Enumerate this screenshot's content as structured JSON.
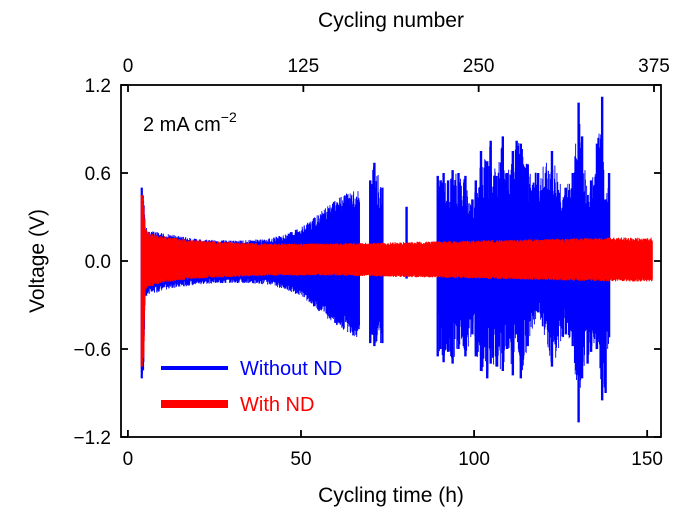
{
  "chart_data": {
    "type": "line",
    "xlabel": "Cycling time (h)",
    "ylabel": "Voltage (V)",
    "x2label": "Cycling number",
    "xlim": [
      -2,
      154
    ],
    "ylim": [
      -1.2,
      1.2
    ],
    "xticks": [
      0,
      50,
      100,
      150
    ],
    "yticks": [
      -1.2,
      -0.6,
      0.0,
      0.6,
      1.2
    ],
    "ytick_labels": [
      "−1.2",
      "−0.6",
      "0.0",
      "0.6",
      "1.2"
    ],
    "x2ticks": [
      0,
      125,
      250,
      375
    ],
    "x2lim": [
      -5,
      380
    ],
    "annotation": {
      "base": "2 mA cm",
      "superscript": "−2"
    },
    "legend": {
      "position": "bottom-left"
    },
    "series": [
      {
        "name": "Without ND",
        "color": "#0000ff",
        "envelope_x": [
          4,
          4.6,
          5,
          6,
          8,
          10,
          15,
          20,
          30,
          40,
          45,
          50,
          53,
          55,
          58,
          60,
          62,
          64,
          66,
          67
        ],
        "envelope_max": [
          0.5,
          0.45,
          0.24,
          0.21,
          0.2,
          0.19,
          0.17,
          0.15,
          0.14,
          0.15,
          0.18,
          0.23,
          0.28,
          0.32,
          0.38,
          0.42,
          0.45,
          0.47,
          0.48,
          0.49
        ],
        "envelope_min": [
          -0.8,
          -0.78,
          -0.25,
          -0.23,
          -0.22,
          -0.2,
          -0.18,
          -0.16,
          -0.15,
          -0.16,
          -0.19,
          -0.24,
          -0.3,
          -0.34,
          -0.4,
          -0.44,
          -0.47,
          -0.5,
          -0.52,
          -0.53
        ],
        "spikes": [
          {
            "x": 70,
            "max": 0.55,
            "min": -0.56
          },
          {
            "x": 71.2,
            "max": 0.67,
            "min": -0.58
          },
          {
            "x": 73.5,
            "max": 0.5,
            "min": -0.56
          },
          {
            "x": 80.5,
            "max": 0.37,
            "min": -0.12
          },
          {
            "x": 89.5,
            "max": 0.58,
            "min": -0.65
          },
          {
            "x": 90.3,
            "max": 0.55,
            "min": -0.6
          },
          {
            "x": 91.2,
            "max": 0.6,
            "min": -0.69
          },
          {
            "x": 92.5,
            "max": 0.55,
            "min": -0.62
          },
          {
            "x": 93.8,
            "max": 0.62,
            "min": -0.7
          },
          {
            "x": 95.5,
            "max": 0.6,
            "min": -0.6
          },
          {
            "x": 97.5,
            "max": 0.58,
            "min": -0.65
          },
          {
            "x": 99.5,
            "max": 0.42,
            "min": -0.5
          },
          {
            "x": 100.5,
            "max": 0.55,
            "min": -0.65
          },
          {
            "x": 102,
            "max": 0.75,
            "min": -0.75
          },
          {
            "x": 103.8,
            "max": 0.68,
            "min": -0.8
          },
          {
            "x": 104.8,
            "max": 0.82,
            "min": -0.7
          },
          {
            "x": 106.5,
            "max": 0.58,
            "min": -0.72
          },
          {
            "x": 108.3,
            "max": 0.85,
            "min": -0.75
          },
          {
            "x": 109.5,
            "max": 0.6,
            "min": -0.6
          },
          {
            "x": 111.2,
            "max": 0.75,
            "min": -0.78
          },
          {
            "x": 112.3,
            "max": 0.82,
            "min": -0.5
          },
          {
            "x": 113.5,
            "max": 0.8,
            "min": -0.8
          },
          {
            "x": 115.5,
            "max": 0.66,
            "min": -0.58
          },
          {
            "x": 118.5,
            "max": 0.6,
            "min": -0.35
          },
          {
            "x": 122.5,
            "max": 0.75,
            "min": -0.72
          },
          {
            "x": 126.5,
            "max": 0.5,
            "min": -0.5
          },
          {
            "x": 128.5,
            "max": 0.6,
            "min": -0.58
          },
          {
            "x": 130.2,
            "max": 1.08,
            "min": -1.1
          },
          {
            "x": 131.2,
            "max": 0.85,
            "min": -0.8
          },
          {
            "x": 132.8,
            "max": 0.45,
            "min": -0.7
          },
          {
            "x": 133.8,
            "max": 0.55,
            "min": -0.62
          },
          {
            "x": 135.5,
            "max": 0.8,
            "min": -0.6
          },
          {
            "x": 137,
            "max": 1.12,
            "min": -0.95
          },
          {
            "x": 138,
            "max": 0.42,
            "min": -0.9
          },
          {
            "x": 139,
            "max": 0.6,
            "min": -0.52
          }
        ]
      },
      {
        "name": "With ND",
        "color": "#ff0000",
        "envelope_x": [
          4,
          4.6,
          5,
          6,
          10,
          20,
          40,
          60,
          80,
          100,
          120,
          140,
          151.5
        ],
        "envelope_max": [
          0.45,
          0.42,
          0.22,
          0.2,
          0.17,
          0.14,
          0.12,
          0.12,
          0.13,
          0.14,
          0.15,
          0.16,
          0.16
        ],
        "envelope_min": [
          -0.72,
          -0.7,
          -0.2,
          -0.18,
          -0.15,
          -0.12,
          -0.1,
          -0.1,
          -0.11,
          -0.12,
          -0.13,
          -0.14,
          -0.14
        ]
      }
    ]
  }
}
